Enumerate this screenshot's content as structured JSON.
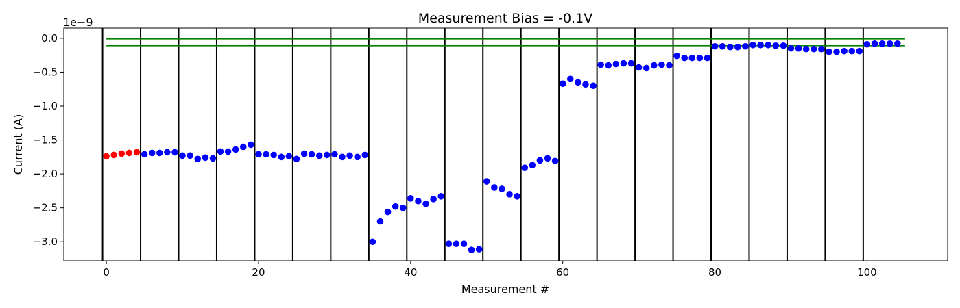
{
  "chart_data": {
    "type": "scatter",
    "title": "Measurement Bias = -0.1V",
    "xlabel": "Measurement #",
    "ylabel": "Current (A)",
    "y_offset_label": "1e−9",
    "xlim": [
      -5.6,
      110.6
    ],
    "ylim": [
      -3.28,
      0.15
    ],
    "x_ticks": [
      0,
      20,
      40,
      60,
      80,
      100
    ],
    "x_tick_labels": [
      "0",
      "20",
      "40",
      "60",
      "80",
      "100"
    ],
    "y_ticks": [
      0.0,
      -0.5,
      -1.0,
      -1.5,
      -2.0,
      -2.5,
      -3.0
    ],
    "y_tick_labels": [
      "0.0",
      "−0.5",
      "−1.0",
      "−1.5",
      "−2.0",
      "−2.5",
      "−3.0"
    ],
    "grid": false,
    "segment_boundaries": [
      -0.5,
      4.5,
      9.5,
      14.5,
      19.5,
      24.5,
      29.5,
      34.5,
      39.5,
      44.5,
      49.5,
      54.5,
      59.5,
      64.5,
      69.5,
      74.5,
      79.5,
      84.5,
      89.5,
      94.5,
      99.5
    ],
    "reference_lines": [
      {
        "y": -0.01,
        "x_range": [
          0,
          105
        ],
        "color": "#008000"
      },
      {
        "y": -0.11,
        "x_range": [
          0,
          105
        ],
        "color": "#008000"
      }
    ],
    "series": [
      {
        "color": "#ff0000",
        "x": [
          0,
          1,
          2,
          3,
          4
        ],
        "y": [
          -1.74,
          -1.72,
          -1.7,
          -1.69,
          -1.68
        ]
      },
      {
        "color": "#0000ff",
        "x": [
          5,
          6,
          7,
          8,
          9,
          10,
          11,
          12,
          13,
          14,
          15,
          16,
          17,
          18,
          19,
          20,
          21,
          22,
          23,
          24,
          25,
          26,
          27,
          28,
          29,
          30,
          31,
          32,
          33,
          34,
          35,
          36,
          37,
          38,
          39,
          40,
          41,
          42,
          43,
          44,
          45,
          46,
          47,
          48,
          49,
          50,
          51,
          52,
          53,
          54,
          55,
          56,
          57,
          58,
          59,
          60,
          61,
          62,
          63,
          64,
          65,
          66,
          67,
          68,
          69,
          70,
          71,
          72,
          73,
          74,
          75,
          76,
          77,
          78,
          79,
          80,
          81,
          82,
          83,
          84,
          85,
          86,
          87,
          88,
          89,
          90,
          91,
          92,
          93,
          94,
          95,
          96,
          97,
          98,
          99,
          100,
          101,
          102,
          103,
          104
        ],
        "y": [
          -1.71,
          -1.69,
          -1.69,
          -1.68,
          -1.68,
          -1.73,
          -1.73,
          -1.78,
          -1.76,
          -1.77,
          -1.67,
          -1.67,
          -1.64,
          -1.6,
          -1.57,
          -1.71,
          -1.71,
          -1.72,
          -1.75,
          -1.74,
          -1.78,
          -1.7,
          -1.71,
          -1.73,
          -1.72,
          -1.71,
          -1.75,
          -1.73,
          -1.75,
          -1.72,
          -3.0,
          -2.7,
          -2.56,
          -2.48,
          -2.5,
          -2.36,
          -2.4,
          -2.44,
          -2.37,
          -2.33,
          -3.03,
          -3.03,
          -3.03,
          -3.12,
          -3.11,
          -2.11,
          -2.2,
          -2.22,
          -2.3,
          -2.33,
          -1.91,
          -1.87,
          -1.8,
          -1.77,
          -1.81,
          -0.67,
          -0.6,
          -0.65,
          -0.68,
          -0.7,
          -0.39,
          -0.4,
          -0.38,
          -0.37,
          -0.37,
          -0.43,
          -0.44,
          -0.4,
          -0.39,
          -0.4,
          -0.26,
          -0.29,
          -0.29,
          -0.29,
          -0.29,
          -0.12,
          -0.12,
          -0.13,
          -0.13,
          -0.12,
          -0.1,
          -0.1,
          -0.1,
          -0.11,
          -0.11,
          -0.15,
          -0.15,
          -0.16,
          -0.16,
          -0.16,
          -0.2,
          -0.2,
          -0.19,
          -0.19,
          -0.19,
          -0.09,
          -0.08,
          -0.08,
          -0.08,
          -0.08
        ]
      }
    ]
  }
}
